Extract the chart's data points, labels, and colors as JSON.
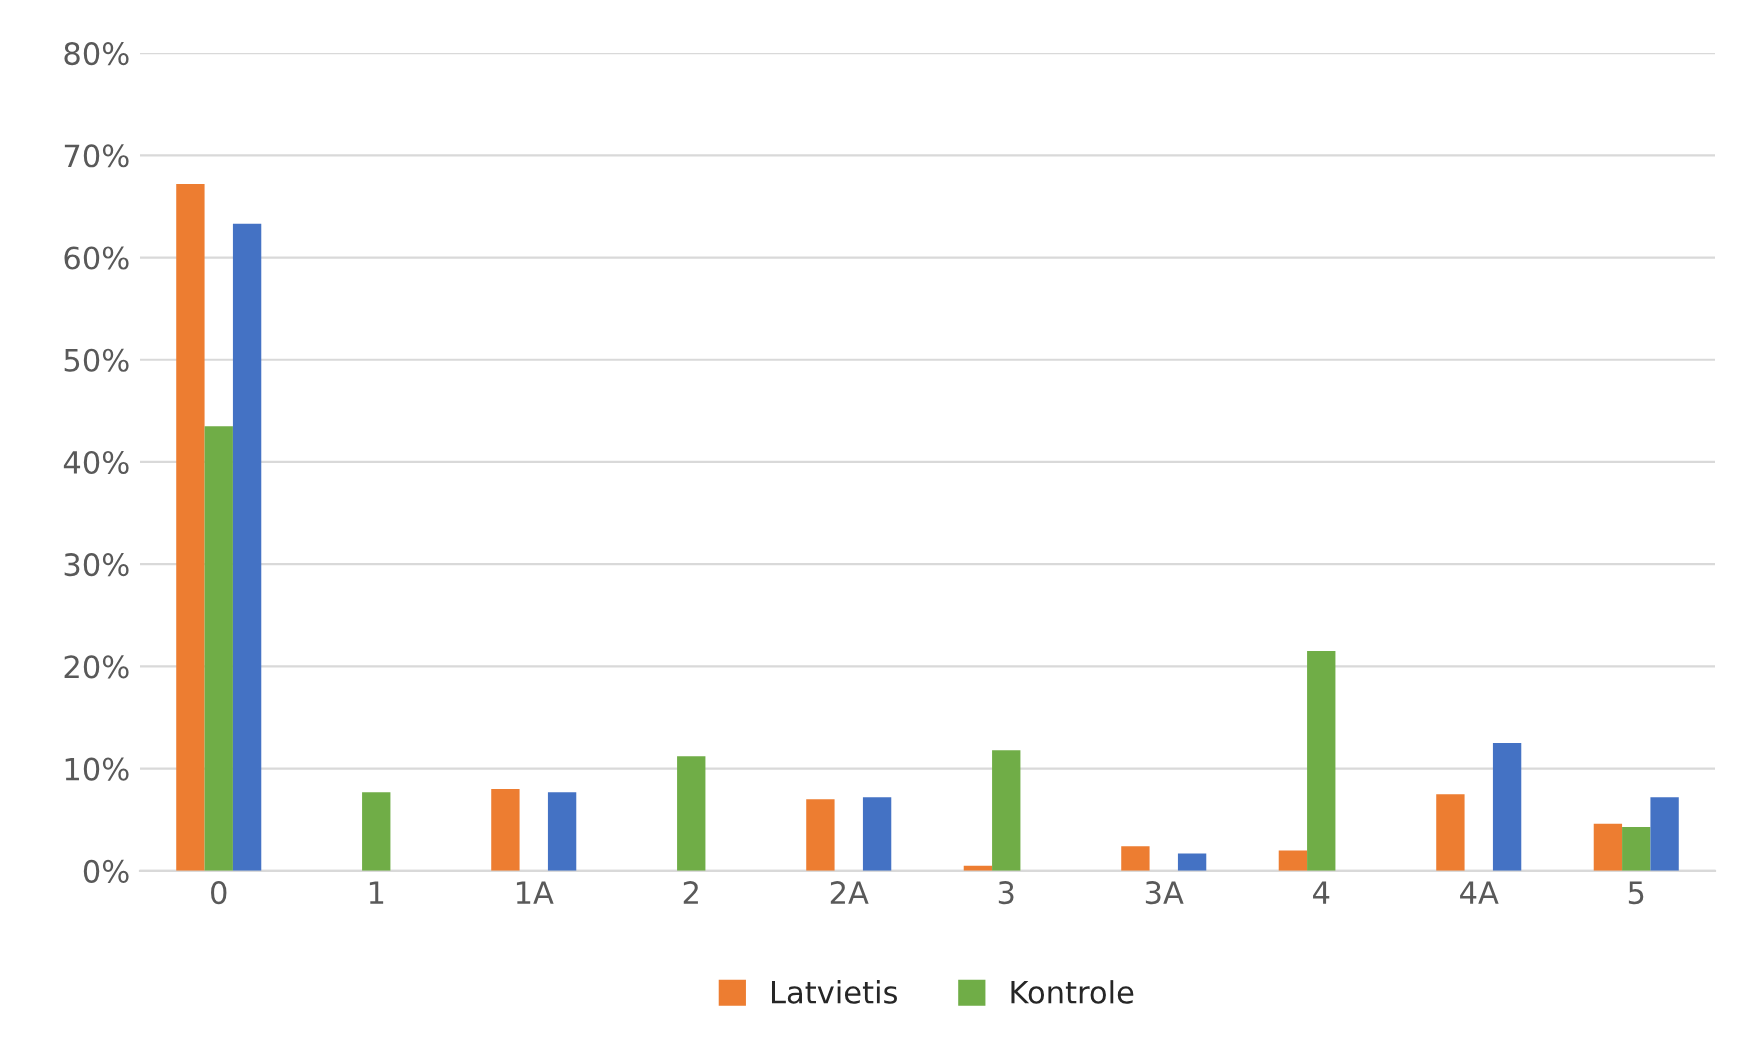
{
  "chart_data": {
    "type": "bar",
    "categories": [
      "0",
      "1",
      "1A",
      "2",
      "2A",
      "3",
      "3A",
      "4",
      "4A",
      "5"
    ],
    "series": [
      {
        "name": "Latvietis",
        "color": "#ed7d31",
        "values": [
          67.2,
          null,
          8.0,
          null,
          7.0,
          0.5,
          2.4,
          2.0,
          7.5,
          4.6
        ]
      },
      {
        "name": "Kontrole",
        "color": "#70ad47",
        "values": [
          43.5,
          7.7,
          null,
          11.2,
          null,
          11.8,
          null,
          21.5,
          null,
          4.3
        ]
      },
      {
        "color": "#4472c4",
        "values": [
          63.3,
          null,
          7.7,
          null,
          7.2,
          null,
          1.7,
          null,
          12.5,
          7.2
        ]
      }
    ],
    "ylim": [
      0,
      80
    ],
    "yticks": [
      {
        "value": 0,
        "label": "0%"
      },
      {
        "value": 10,
        "label": "10%"
      },
      {
        "value": 20,
        "label": "20%"
      },
      {
        "value": 30,
        "label": "30%"
      },
      {
        "value": 40,
        "label": "40%"
      },
      {
        "value": 50,
        "label": "50%"
      },
      {
        "value": 60,
        "label": "60%"
      },
      {
        "value": 70,
        "label": "70%"
      },
      {
        "value": 80,
        "label": "80%"
      }
    ],
    "grid": "y",
    "legend": "bottom"
  }
}
